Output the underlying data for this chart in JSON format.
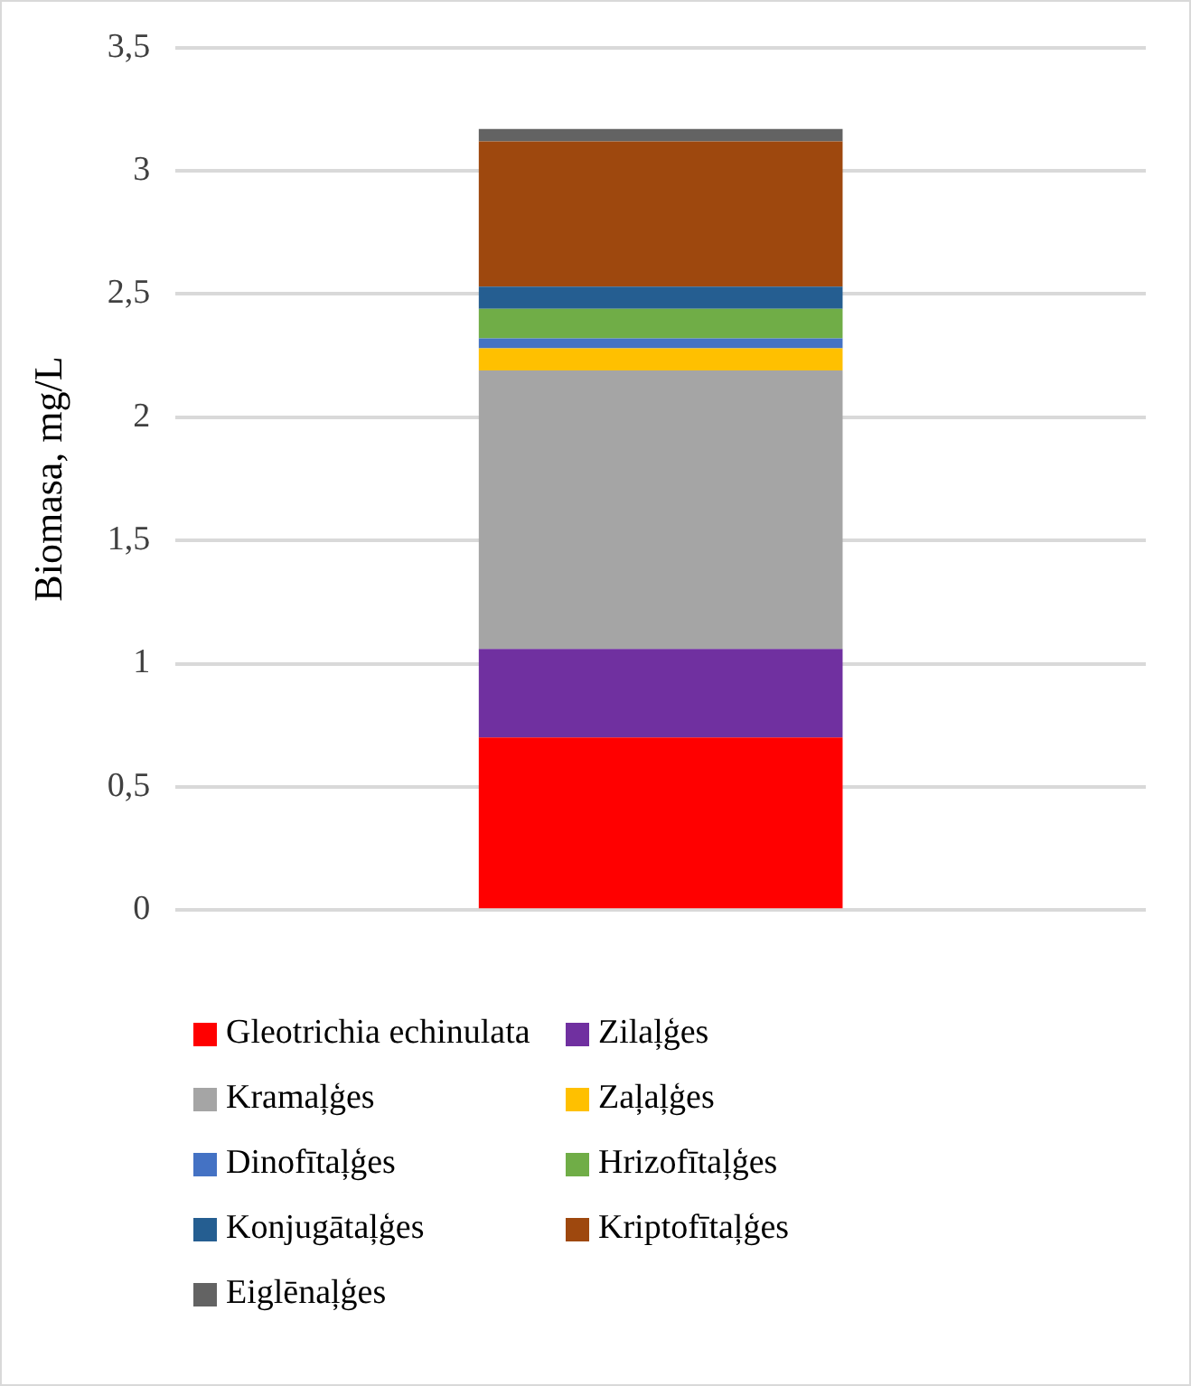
{
  "chart_data": {
    "type": "bar",
    "stacked": true,
    "ylabel": "Biomasa, mg/L",
    "categories": [
      null
    ],
    "series": [
      {
        "name": "Gleotrichia echinulata",
        "color": "#ff0000",
        "values": [
          0.7
        ]
      },
      {
        "name": "Zilaļģes",
        "color": "#7030a0",
        "values": [
          0.36
        ]
      },
      {
        "name": "Kramaļģes",
        "color": "#a5a5a5",
        "values": [
          1.13
        ]
      },
      {
        "name": "Zaļaļģes",
        "color": "#ffc000",
        "values": [
          0.09
        ]
      },
      {
        "name": "Dinofītaļģes",
        "color": "#4472c4",
        "values": [
          0.04
        ]
      },
      {
        "name": "Hrizofītaļģes",
        "color": "#70ad47",
        "values": [
          0.12
        ]
      },
      {
        "name": "Konjugātaļģes",
        "color": "#255e91",
        "values": [
          0.09
        ]
      },
      {
        "name": "Kriptofītaļģes",
        "color": "#9e480e",
        "values": [
          0.59
        ]
      },
      {
        "name": "Eiglēnaļģes",
        "color": "#636363",
        "values": [
          0.05
        ]
      }
    ],
    "ylim": [
      0,
      3.5
    ],
    "yticks": [
      0,
      {
        "value": 0.5,
        "label": "0,5"
      },
      1,
      {
        "value": 1.5,
        "label": "1,5"
      },
      2,
      {
        "value": 2.5,
        "label": "2,5"
      },
      3,
      {
        "value": 3.5,
        "label": "3,5"
      }
    ],
    "grid": "y",
    "legend": "bottom"
  }
}
